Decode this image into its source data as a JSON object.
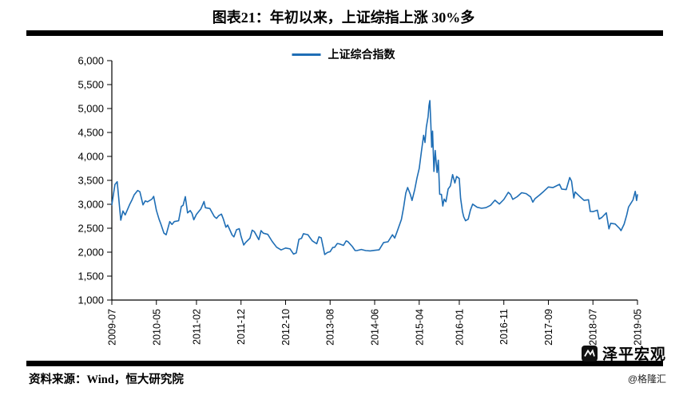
{
  "page": {
    "title": "图表21：年初以来，上证综指上涨 30%多",
    "source": "资料来源：Wind，恒大研究院",
    "watermark": {
      "brand": "泽平宏观",
      "handle": "@格隆汇"
    }
  },
  "chart_data": {
    "type": "line",
    "title": "图表21：年初以来，上证综指上涨 30%多",
    "legend": [
      "上证综合指数"
    ],
    "legend_position": "top-center",
    "grid": false,
    "line_color": "#1f6eb5",
    "axis_color": "#000000",
    "ylim": [
      1000,
      6000
    ],
    "ytick_step": 500,
    "ytick_labels": [
      "6,000",
      "5,500",
      "5,000",
      "4,500",
      "4,000",
      "3,500",
      "3,000",
      "2,500",
      "2,000",
      "1,500",
      "1,000"
    ],
    "x_unit": "months since 2009-07",
    "x_range": [
      0,
      118
    ],
    "xticks": [
      {
        "pos": 0,
        "label": "2009-07"
      },
      {
        "pos": 10,
        "label": "2010-05"
      },
      {
        "pos": 19,
        "label": "2011-02"
      },
      {
        "pos": 29,
        "label": "2011-12"
      },
      {
        "pos": 39,
        "label": "2012-10"
      },
      {
        "pos": 49,
        "label": "2013-08"
      },
      {
        "pos": 59,
        "label": "2014-06"
      },
      {
        "pos": 69,
        "label": "2015-04"
      },
      {
        "pos": 78,
        "label": "2016-01"
      },
      {
        "pos": 88,
        "label": "2016-11"
      },
      {
        "pos": 98,
        "label": "2017-09"
      },
      {
        "pos": 108,
        "label": "2018-07"
      },
      {
        "pos": 118,
        "label": "2019-05"
      }
    ],
    "series": [
      {
        "name": "上证综合指数",
        "points": [
          [
            0,
            2990
          ],
          [
            0.7,
            3412
          ],
          [
            1.2,
            3471
          ],
          [
            2,
            2668
          ],
          [
            2.5,
            2860
          ],
          [
            3,
            2779
          ],
          [
            4,
            2995
          ],
          [
            4.5,
            3087
          ],
          [
            5,
            3195
          ],
          [
            5.8,
            3289
          ],
          [
            6.3,
            3262
          ],
          [
            7,
            2989
          ],
          [
            7.5,
            3070
          ],
          [
            8,
            3052
          ],
          [
            9,
            3109
          ],
          [
            9.4,
            3165
          ],
          [
            10,
            2871
          ],
          [
            10.6,
            2688
          ],
          [
            11,
            2592
          ],
          [
            11.7,
            2398
          ],
          [
            12.2,
            2364
          ],
          [
            13,
            2638
          ],
          [
            13.5,
            2580
          ],
          [
            14,
            2639
          ],
          [
            15,
            2656
          ],
          [
            15.6,
            2955
          ],
          [
            16,
            2979
          ],
          [
            16.5,
            3160
          ],
          [
            17,
            2820
          ],
          [
            17.6,
            2870
          ],
          [
            18,
            2808
          ],
          [
            18.4,
            2677
          ],
          [
            19,
            2790
          ],
          [
            20,
            2905
          ],
          [
            20.7,
            3058
          ],
          [
            21,
            2928
          ],
          [
            22,
            2911
          ],
          [
            23,
            2743
          ],
          [
            23.5,
            2705
          ],
          [
            24,
            2762
          ],
          [
            24.6,
            2795
          ],
          [
            25,
            2701
          ],
          [
            25.6,
            2520
          ],
          [
            26,
            2567
          ],
          [
            27,
            2359
          ],
          [
            27.4,
            2320
          ],
          [
            28,
            2468
          ],
          [
            28.6,
            2490
          ],
          [
            29,
            2333
          ],
          [
            29.6,
            2150
          ],
          [
            30,
            2199
          ],
          [
            31,
            2292
          ],
          [
            31.5,
            2460
          ],
          [
            32,
            2428
          ],
          [
            33,
            2262
          ],
          [
            33.5,
            2450
          ],
          [
            34,
            2396
          ],
          [
            35,
            2372
          ],
          [
            36,
            2225
          ],
          [
            37,
            2103
          ],
          [
            38,
            2047
          ],
          [
            39,
            2086
          ],
          [
            40,
            2068
          ],
          [
            40.8,
            1960
          ],
          [
            41.4,
            1985
          ],
          [
            42,
            2269
          ],
          [
            42.6,
            2290
          ],
          [
            43,
            2385
          ],
          [
            44,
            2365
          ],
          [
            45,
            2236
          ],
          [
            46,
            2177
          ],
          [
            46.5,
            2320
          ],
          [
            47,
            2300
          ],
          [
            47.8,
            1950
          ],
          [
            48.4,
            1994
          ],
          [
            49,
            2010
          ],
          [
            49.6,
            2098
          ],
          [
            50,
            2100
          ],
          [
            50.6,
            2180
          ],
          [
            51,
            2175
          ],
          [
            52,
            2141
          ],
          [
            52.6,
            2235
          ],
          [
            53,
            2220
          ],
          [
            54,
            2116
          ],
          [
            54.6,
            2035
          ],
          [
            55,
            2033
          ],
          [
            56,
            2056
          ],
          [
            57,
            2033
          ],
          [
            58,
            2026
          ],
          [
            59,
            2039
          ],
          [
            60,
            2048
          ],
          [
            61,
            2201
          ],
          [
            62,
            2217
          ],
          [
            63,
            2363
          ],
          [
            63.5,
            2295
          ],
          [
            64,
            2420
          ],
          [
            65,
            2683
          ],
          [
            65.5,
            2930
          ],
          [
            66,
            3235
          ],
          [
            66.4,
            3350
          ],
          [
            67,
            3210
          ],
          [
            67.4,
            3080
          ],
          [
            68,
            3310
          ],
          [
            68.5,
            3550
          ],
          [
            69,
            3748
          ],
          [
            69.5,
            4110
          ],
          [
            70,
            4442
          ],
          [
            70.3,
            4290
          ],
          [
            70.6,
            4612
          ],
          [
            71,
            4830
          ],
          [
            71.2,
            5060
          ],
          [
            71.4,
            5166
          ],
          [
            71.6,
            4690
          ],
          [
            71.8,
            4192
          ],
          [
            72,
            4528
          ],
          [
            72.3,
            3687
          ],
          [
            72.6,
            4124
          ],
          [
            73,
            3664
          ],
          [
            73.3,
            3920
          ],
          [
            73.6,
            3210
          ],
          [
            74,
            3206
          ],
          [
            74.3,
            2964
          ],
          [
            74.6,
            3110
          ],
          [
            75,
            3053
          ],
          [
            75.5,
            3320
          ],
          [
            76,
            3383
          ],
          [
            76.5,
            3620
          ],
          [
            77,
            3445
          ],
          [
            77.4,
            3580
          ],
          [
            78,
            3539
          ],
          [
            78.3,
            3125
          ],
          [
            78.7,
            2850
          ],
          [
            79,
            2738
          ],
          [
            79.4,
            2656
          ],
          [
            80,
            2688
          ],
          [
            80.5,
            2880
          ],
          [
            81,
            3004
          ],
          [
            82,
            2938
          ],
          [
            83,
            2917
          ],
          [
            84,
            2930
          ],
          [
            85,
            2979
          ],
          [
            86,
            3085
          ],
          [
            87,
            3005
          ],
          [
            88,
            3100
          ],
          [
            89,
            3250
          ],
          [
            89.5,
            3205
          ],
          [
            90,
            3104
          ],
          [
            91,
            3159
          ],
          [
            92,
            3242
          ],
          [
            93,
            3223
          ],
          [
            94,
            3155
          ],
          [
            94.5,
            3045
          ],
          [
            95,
            3117
          ],
          [
            96,
            3192
          ],
          [
            97,
            3273
          ],
          [
            98,
            3361
          ],
          [
            99,
            3349
          ],
          [
            100,
            3393
          ],
          [
            100.5,
            3416
          ],
          [
            101,
            3317
          ],
          [
            102,
            3307
          ],
          [
            102.8,
            3559
          ],
          [
            103.2,
            3481
          ],
          [
            103.7,
            3130
          ],
          [
            104,
            3259
          ],
          [
            105,
            3169
          ],
          [
            106,
            3082
          ],
          [
            107,
            3095
          ],
          [
            107.4,
            2850
          ],
          [
            108,
            2847
          ],
          [
            109,
            2876
          ],
          [
            109.4,
            2692
          ],
          [
            110,
            2725
          ],
          [
            111,
            2821
          ],
          [
            111.6,
            2486
          ],
          [
            112,
            2603
          ],
          [
            113,
            2588
          ],
          [
            114,
            2494
          ],
          [
            114.3,
            2450
          ],
          [
            115,
            2585
          ],
          [
            115.6,
            2780
          ],
          [
            116,
            2941
          ],
          [
            117,
            3091
          ],
          [
            117.5,
            3270
          ],
          [
            117.8,
            3078
          ],
          [
            118,
            3200
          ]
        ]
      }
    ]
  }
}
